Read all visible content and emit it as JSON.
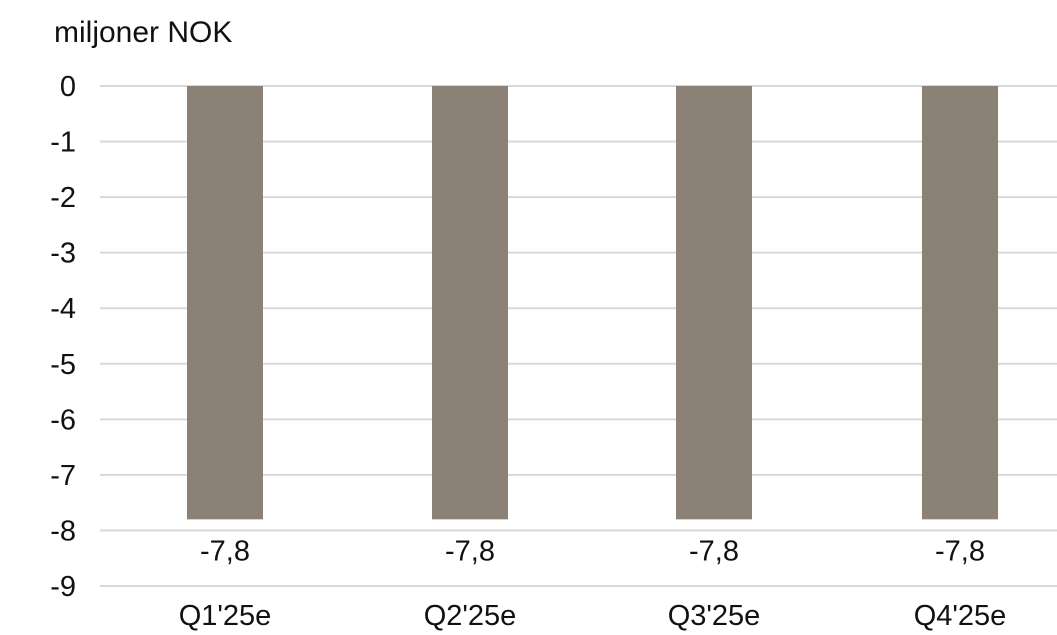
{
  "chart_data": {
    "type": "bar",
    "unit_label": "miljoner NOK",
    "categories": [
      "Q1'25e",
      "Q2'25e",
      "Q3'25e",
      "Q4'25e"
    ],
    "values": [
      -7.8,
      -7.8,
      -7.8,
      -7.8
    ],
    "data_labels": [
      "-7,8",
      "-7,8",
      "-7,8",
      "-7,8"
    ],
    "y_ticks": [
      0,
      -1,
      -2,
      -3,
      -4,
      -5,
      -6,
      -7,
      -8,
      -9
    ],
    "y_tick_labels": [
      "0",
      "-1",
      "-2",
      "-3",
      "-4",
      "-5",
      "-6",
      "-7",
      "-8",
      "-9"
    ],
    "ylim": [
      -9,
      0
    ],
    "grid": true,
    "legend": "none",
    "colors": {
      "bar": "#8b8176",
      "gridline": "#d9d9d9",
      "text": "#111111"
    }
  }
}
